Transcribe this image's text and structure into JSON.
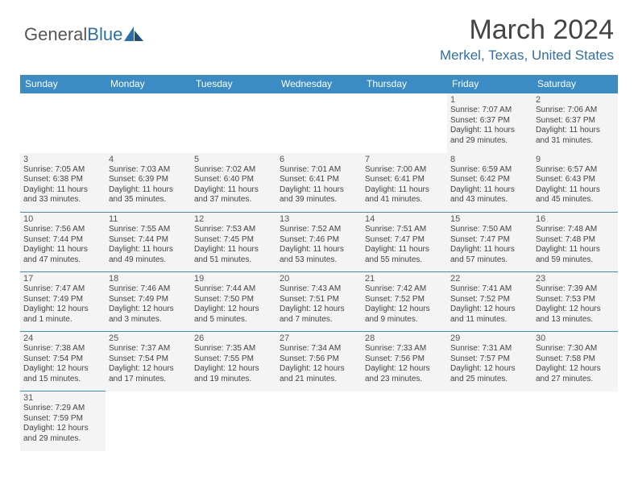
{
  "logo": {
    "text1": "General",
    "text2": "Blue"
  },
  "title": "March 2024",
  "location": "Merkel, Texas, United States",
  "colors": {
    "header_bg": "#3b8bc4",
    "header_text": "#ffffff",
    "cell_bg": "#f4f4f4",
    "border": "#3b8bc4",
    "accent": "#2f6fa8",
    "body_text": "#444444"
  },
  "weekdays": [
    "Sunday",
    "Monday",
    "Tuesday",
    "Wednesday",
    "Thursday",
    "Friday",
    "Saturday"
  ],
  "grid": [
    [
      null,
      null,
      null,
      null,
      null,
      {
        "n": "1",
        "sr": "7:07 AM",
        "ss": "6:37 PM",
        "dl": "11 hours and 29 minutes."
      },
      {
        "n": "2",
        "sr": "7:06 AM",
        "ss": "6:37 PM",
        "dl": "11 hours and 31 minutes."
      }
    ],
    [
      {
        "n": "3",
        "sr": "7:05 AM",
        "ss": "6:38 PM",
        "dl": "11 hours and 33 minutes."
      },
      {
        "n": "4",
        "sr": "7:03 AM",
        "ss": "6:39 PM",
        "dl": "11 hours and 35 minutes."
      },
      {
        "n": "5",
        "sr": "7:02 AM",
        "ss": "6:40 PM",
        "dl": "11 hours and 37 minutes."
      },
      {
        "n": "6",
        "sr": "7:01 AM",
        "ss": "6:41 PM",
        "dl": "11 hours and 39 minutes."
      },
      {
        "n": "7",
        "sr": "7:00 AM",
        "ss": "6:41 PM",
        "dl": "11 hours and 41 minutes."
      },
      {
        "n": "8",
        "sr": "6:59 AM",
        "ss": "6:42 PM",
        "dl": "11 hours and 43 minutes."
      },
      {
        "n": "9",
        "sr": "6:57 AM",
        "ss": "6:43 PM",
        "dl": "11 hours and 45 minutes."
      }
    ],
    [
      {
        "n": "10",
        "sr": "7:56 AM",
        "ss": "7:44 PM",
        "dl": "11 hours and 47 minutes."
      },
      {
        "n": "11",
        "sr": "7:55 AM",
        "ss": "7:44 PM",
        "dl": "11 hours and 49 minutes."
      },
      {
        "n": "12",
        "sr": "7:53 AM",
        "ss": "7:45 PM",
        "dl": "11 hours and 51 minutes."
      },
      {
        "n": "13",
        "sr": "7:52 AM",
        "ss": "7:46 PM",
        "dl": "11 hours and 53 minutes."
      },
      {
        "n": "14",
        "sr": "7:51 AM",
        "ss": "7:47 PM",
        "dl": "11 hours and 55 minutes."
      },
      {
        "n": "15",
        "sr": "7:50 AM",
        "ss": "7:47 PM",
        "dl": "11 hours and 57 minutes."
      },
      {
        "n": "16",
        "sr": "7:48 AM",
        "ss": "7:48 PM",
        "dl": "11 hours and 59 minutes."
      }
    ],
    [
      {
        "n": "17",
        "sr": "7:47 AM",
        "ss": "7:49 PM",
        "dl": "12 hours and 1 minute."
      },
      {
        "n": "18",
        "sr": "7:46 AM",
        "ss": "7:49 PM",
        "dl": "12 hours and 3 minutes."
      },
      {
        "n": "19",
        "sr": "7:44 AM",
        "ss": "7:50 PM",
        "dl": "12 hours and 5 minutes."
      },
      {
        "n": "20",
        "sr": "7:43 AM",
        "ss": "7:51 PM",
        "dl": "12 hours and 7 minutes."
      },
      {
        "n": "21",
        "sr": "7:42 AM",
        "ss": "7:52 PM",
        "dl": "12 hours and 9 minutes."
      },
      {
        "n": "22",
        "sr": "7:41 AM",
        "ss": "7:52 PM",
        "dl": "12 hours and 11 minutes."
      },
      {
        "n": "23",
        "sr": "7:39 AM",
        "ss": "7:53 PM",
        "dl": "12 hours and 13 minutes."
      }
    ],
    [
      {
        "n": "24",
        "sr": "7:38 AM",
        "ss": "7:54 PM",
        "dl": "12 hours and 15 minutes."
      },
      {
        "n": "25",
        "sr": "7:37 AM",
        "ss": "7:54 PM",
        "dl": "12 hours and 17 minutes."
      },
      {
        "n": "26",
        "sr": "7:35 AM",
        "ss": "7:55 PM",
        "dl": "12 hours and 19 minutes."
      },
      {
        "n": "27",
        "sr": "7:34 AM",
        "ss": "7:56 PM",
        "dl": "12 hours and 21 minutes."
      },
      {
        "n": "28",
        "sr": "7:33 AM",
        "ss": "7:56 PM",
        "dl": "12 hours and 23 minutes."
      },
      {
        "n": "29",
        "sr": "7:31 AM",
        "ss": "7:57 PM",
        "dl": "12 hours and 25 minutes."
      },
      {
        "n": "30",
        "sr": "7:30 AM",
        "ss": "7:58 PM",
        "dl": "12 hours and 27 minutes."
      }
    ],
    [
      {
        "n": "31",
        "sr": "7:29 AM",
        "ss": "7:59 PM",
        "dl": "12 hours and 29 minutes."
      },
      null,
      null,
      null,
      null,
      null,
      null
    ]
  ],
  "labels": {
    "sunrise": "Sunrise:",
    "sunset": "Sunset:",
    "daylight": "Daylight:"
  }
}
